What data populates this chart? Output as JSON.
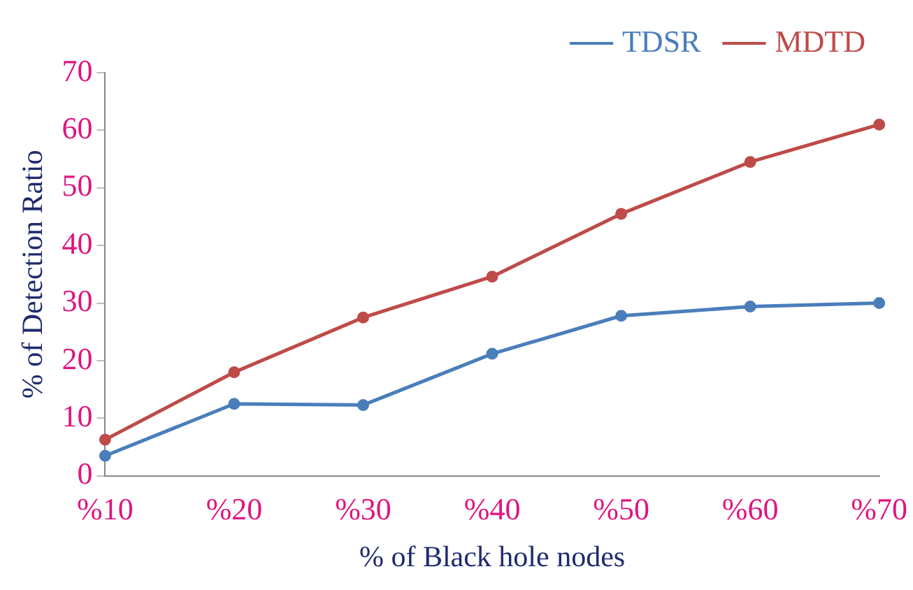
{
  "chart_data": {
    "type": "line",
    "xlabel": "% of Black hole nodes",
    "ylabel": "% of Detection Ratio",
    "categories": [
      "%10",
      "%20",
      "%30",
      "%40",
      "%50",
      "%60",
      "%70"
    ],
    "series": [
      {
        "name": "TDSR",
        "color": "#4a7ebb",
        "values": [
          3.5,
          12.5,
          12.3,
          21.2,
          27.8,
          29.4,
          30.0
        ]
      },
      {
        "name": "MDTD",
        "color": "#be4b48",
        "values": [
          6.3,
          18.0,
          27.5,
          34.6,
          45.5,
          54.5,
          61.0
        ]
      }
    ],
    "ylim": [
      0,
      70
    ],
    "yticks": [
      0,
      10,
      20,
      30,
      40,
      50,
      60,
      70
    ],
    "grid": false,
    "legend": "top right",
    "marker": "circle",
    "line_style": "solid"
  }
}
